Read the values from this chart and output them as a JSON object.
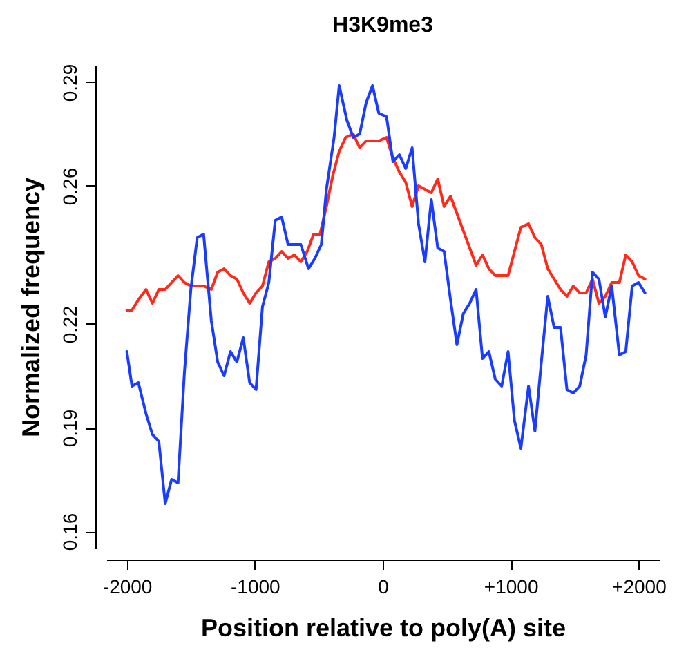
{
  "chart_data": {
    "type": "line",
    "title": "H3K9me3",
    "xlabel": "Position relative to poly(A) site",
    "ylabel": "Normalized frequency",
    "xlim": [
      -2160,
      2160
    ],
    "xticks": [
      {
        "value": -2000,
        "label": "-2000"
      },
      {
        "value": -1000,
        "label": "-1000"
      },
      0,
      {
        "value": 1000,
        "label": "+1000"
      },
      {
        "value": 2000,
        "label": "+2000"
      }
    ],
    "ylim": [
      0.155,
      0.295
    ],
    "yticks": [
      0.16,
      0.19,
      0.22,
      0.26,
      0.29
    ],
    "grid": false,
    "line_style": "solid",
    "series": [
      {
        "color": "#ff2a1a",
        "x": [
          -2000,
          -1960,
          -1910,
          -1850,
          -1800,
          -1750,
          -1700,
          -1650,
          -1600,
          -1550,
          -1500,
          -1450,
          -1400,
          -1340,
          -1290,
          -1240,
          -1190,
          -1140,
          -1090,
          -1040,
          -990,
          -940,
          -890,
          -840,
          -790,
          -740,
          -690,
          -640,
          -590,
          -540,
          -490,
          -440,
          -390,
          -340,
          -290,
          -230,
          -180,
          -130,
          -80,
          -30,
          30,
          80,
          130,
          180,
          230,
          280,
          330,
          380,
          430,
          480,
          530,
          580,
          630,
          680,
          730,
          780,
          830,
          880,
          930,
          980,
          1030,
          1080,
          1140,
          1190,
          1240,
          1290,
          1340,
          1390,
          1440,
          1490,
          1540,
          1590,
          1640,
          1690,
          1740,
          1790,
          1850,
          1900,
          1950,
          2000,
          2050
        ],
        "values": [
          0.224,
          0.224,
          0.227,
          0.23,
          0.226,
          0.23,
          0.23,
          0.232,
          0.234,
          0.232,
          0.231,
          0.231,
          0.231,
          0.23,
          0.235,
          0.236,
          0.234,
          0.233,
          0.229,
          0.226,
          0.229,
          0.231,
          0.238,
          0.239,
          0.241,
          0.239,
          0.24,
          0.238,
          0.241,
          0.246,
          0.246,
          0.254,
          0.263,
          0.27,
          0.274,
          0.275,
          0.271,
          0.273,
          0.273,
          0.273,
          0.274,
          0.268,
          0.264,
          0.261,
          0.254,
          0.26,
          0.259,
          0.258,
          0.262,
          0.254,
          0.257,
          0.252,
          0.247,
          0.242,
          0.237,
          0.24,
          0.236,
          0.234,
          0.234,
          0.234,
          0.241,
          0.248,
          0.249,
          0.245,
          0.243,
          0.236,
          0.233,
          0.23,
          0.228,
          0.231,
          0.229,
          0.229,
          0.233,
          0.226,
          0.228,
          0.232,
          0.232,
          0.24,
          0.238,
          0.234,
          0.233
        ]
      },
      {
        "color": "#1a3cff",
        "x": [
          -2000,
          -1960,
          -1910,
          -1850,
          -1800,
          -1750,
          -1700,
          -1650,
          -1600,
          -1550,
          -1500,
          -1450,
          -1400,
          -1340,
          -1290,
          -1240,
          -1190,
          -1140,
          -1090,
          -1040,
          -990,
          -940,
          -890,
          -840,
          -790,
          -740,
          -690,
          -640,
          -580,
          -530,
          -480,
          -440,
          -380,
          -340,
          -280,
          -230,
          -180,
          -130,
          -80,
          -30,
          30,
          80,
          130,
          180,
          230,
          280,
          330,
          380,
          430,
          480,
          530,
          580,
          630,
          680,
          730,
          780,
          830,
          880,
          930,
          980,
          1030,
          1080,
          1140,
          1190,
          1240,
          1290,
          1340,
          1390,
          1440,
          1490,
          1540,
          1590,
          1640,
          1690,
          1740,
          1790,
          1850,
          1900,
          1950,
          2000,
          2050
        ],
        "values": [
          0.212,
          0.202,
          0.203,
          0.194,
          0.188,
          0.186,
          0.168,
          0.175,
          0.174,
          0.206,
          0.23,
          0.245,
          0.246,
          0.221,
          0.209,
          0.205,
          0.212,
          0.209,
          0.216,
          0.203,
          0.201,
          0.225,
          0.232,
          0.25,
          0.251,
          0.243,
          0.243,
          0.243,
          0.236,
          0.239,
          0.243,
          0.259,
          0.274,
          0.289,
          0.279,
          0.274,
          0.275,
          0.284,
          0.289,
          0.281,
          0.28,
          0.267,
          0.269,
          0.265,
          0.271,
          0.249,
          0.238,
          0.256,
          0.242,
          0.241,
          0.227,
          0.214,
          0.223,
          0.226,
          0.23,
          0.21,
          0.212,
          0.204,
          0.202,
          0.212,
          0.192,
          0.184,
          0.202,
          0.189,
          0.209,
          0.228,
          0.219,
          0.219,
          0.201,
          0.2,
          0.202,
          0.211,
          0.235,
          0.233,
          0.222,
          0.231,
          0.211,
          0.212,
          0.231,
          0.232,
          0.229
        ]
      }
    ]
  }
}
